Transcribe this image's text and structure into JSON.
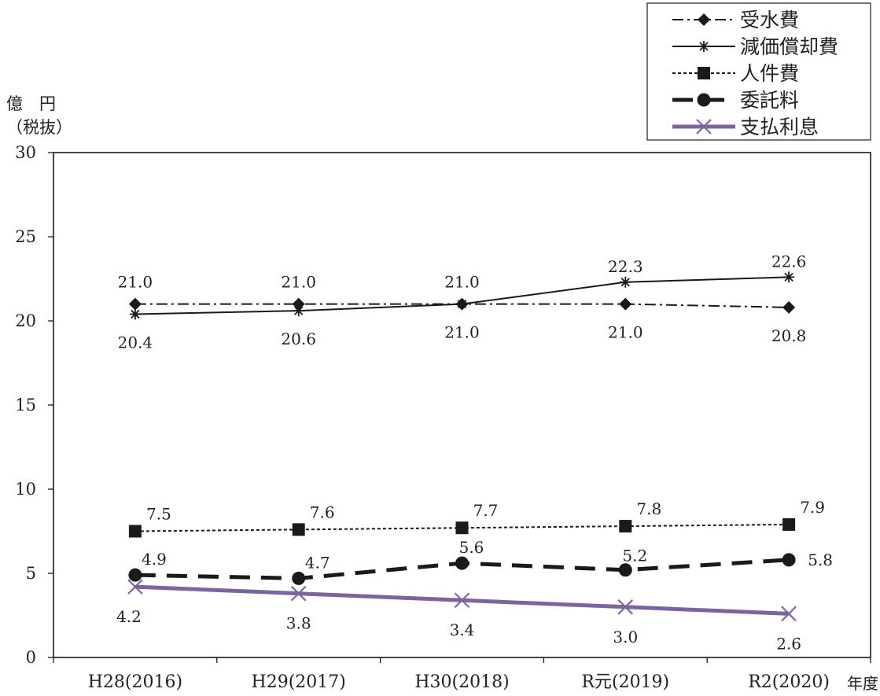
{
  "chart_data": {
    "type": "line",
    "ylabel": "億　円",
    "ylabel_sub": "（税抜）",
    "xlabel": "年度",
    "ylim": [
      0,
      30
    ],
    "yticks": [
      0,
      5,
      10,
      15,
      20,
      25,
      30
    ],
    "grid": false,
    "legend_position": "top-right",
    "categories": [
      "H28(2016)",
      "H29(2017)",
      "H30(2018)",
      "R元(2019)",
      "R2(2020)"
    ],
    "series": [
      {
        "name": "受水費",
        "values": [
          21.0,
          21.0,
          21.0,
          21.0,
          20.8
        ],
        "color": "#1a1a1a",
        "marker": "diamond",
        "line": "dash-dot"
      },
      {
        "name": "減価償却費",
        "values": [
          20.4,
          20.6,
          21.0,
          22.3,
          22.6
        ],
        "color": "#1a1a1a",
        "marker": "asterisk",
        "line": "solid"
      },
      {
        "name": "人件費",
        "values": [
          7.5,
          7.6,
          7.7,
          7.8,
          7.9
        ],
        "color": "#1a1a1a",
        "marker": "square",
        "line": "dotted"
      },
      {
        "name": "委託料",
        "values": [
          4.9,
          4.7,
          5.6,
          5.2,
          5.8
        ],
        "color": "#1a1a1a",
        "marker": "circle",
        "line": "long-dash"
      },
      {
        "name": "支払利息",
        "values": [
          4.2,
          3.8,
          3.4,
          3.0,
          2.6
        ],
        "color": "#7b64a0",
        "marker": "x",
        "line": "solid-thick"
      }
    ],
    "data_labels": [
      [
        "21.0",
        "21.0",
        "21.0",
        "21.0",
        "20.8"
      ],
      [
        "20.4",
        "20.6",
        "21.0",
        "22.3",
        "22.6"
      ],
      [
        "7.5",
        "7.6",
        "7.7",
        "7.8",
        "7.9"
      ],
      [
        "4.9",
        "4.7",
        "5.6",
        "5.2",
        "5.8"
      ],
      [
        "4.2",
        "3.8",
        "3.4",
        "3.0",
        "2.6"
      ]
    ]
  }
}
